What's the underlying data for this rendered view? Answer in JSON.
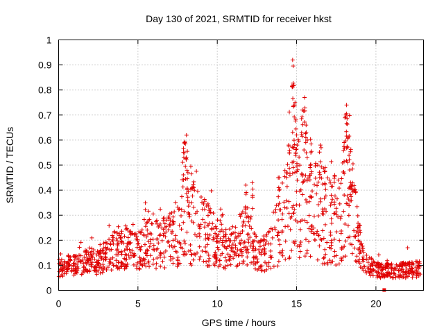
{
  "chart_data": {
    "type": "scatter",
    "title": "Day 130 of 2021, SRMTID for receiver hkst",
    "xlabel": "GPS time / hours",
    "ylabel": "SRMTID / TECUs",
    "xlim": [
      0,
      23
    ],
    "ylim": [
      0,
      1
    ],
    "xticks": [
      0,
      5,
      10,
      15,
      20
    ],
    "yticks": [
      0,
      0.1,
      0.2,
      0.3,
      0.4,
      0.5,
      0.6,
      0.7,
      0.8,
      0.9,
      1
    ],
    "xtick_labels": [
      "0",
      "5",
      "10",
      "15",
      "20"
    ],
    "ytick_labels": [
      "0",
      "0.1",
      "0.2",
      "0.3",
      "0.4",
      "0.5",
      "0.6",
      "0.7",
      "0.8",
      "0.9",
      "1"
    ],
    "grid": true,
    "marker": "+",
    "color": "#e00000",
    "series": [
      {
        "name": "SRMTID",
        "profile_x": [
          0,
          0.5,
          1,
          1.5,
          2,
          2.5,
          3,
          3.5,
          4,
          4.5,
          5,
          5.5,
          6,
          6.5,
          7,
          7.5,
          7.8,
          8.0,
          8.3,
          8.6,
          9,
          9.5,
          10,
          10.5,
          11,
          11.5,
          12,
          12.5,
          13,
          13.5,
          14,
          14.3,
          14.6,
          14.8,
          15.0,
          15.3,
          15.6,
          16,
          16.5,
          17,
          17.5,
          18,
          18.2,
          18.5,
          19,
          19.5,
          20,
          21,
          22,
          22.8
        ],
        "profile_y": [
          0.09,
          0.1,
          0.1,
          0.11,
          0.12,
          0.11,
          0.14,
          0.16,
          0.18,
          0.16,
          0.15,
          0.19,
          0.18,
          0.19,
          0.2,
          0.22,
          0.32,
          0.4,
          0.3,
          0.26,
          0.24,
          0.22,
          0.19,
          0.17,
          0.17,
          0.2,
          0.22,
          0.14,
          0.14,
          0.2,
          0.26,
          0.3,
          0.4,
          0.5,
          0.42,
          0.38,
          0.44,
          0.33,
          0.3,
          0.28,
          0.26,
          0.35,
          0.42,
          0.32,
          0.16,
          0.1,
          0.08,
          0.08,
          0.08,
          0.09
        ],
        "spikes": [
          {
            "x": 7.95,
            "y": 0.59
          },
          {
            "x": 8.05,
            "y": 0.53
          },
          {
            "x": 8.15,
            "y": 0.47
          },
          {
            "x": 11.8,
            "y": 0.42
          },
          {
            "x": 12.2,
            "y": 0.43
          },
          {
            "x": 13.9,
            "y": 0.45
          },
          {
            "x": 14.5,
            "y": 0.58
          },
          {
            "x": 14.75,
            "y": 0.92
          },
          {
            "x": 14.8,
            "y": 0.82
          },
          {
            "x": 14.9,
            "y": 0.75
          },
          {
            "x": 15.0,
            "y": 0.62
          },
          {
            "x": 15.35,
            "y": 0.72
          },
          {
            "x": 15.5,
            "y": 0.77
          },
          {
            "x": 15.6,
            "y": 0.66
          },
          {
            "x": 15.9,
            "y": 0.55
          },
          {
            "x": 16.5,
            "y": 0.58
          },
          {
            "x": 16.8,
            "y": 0.49
          },
          {
            "x": 17.4,
            "y": 0.46
          },
          {
            "x": 18.0,
            "y": 0.59
          },
          {
            "x": 18.1,
            "y": 0.7
          },
          {
            "x": 18.15,
            "y": 0.74
          },
          {
            "x": 18.25,
            "y": 0.61
          },
          {
            "x": 18.4,
            "y": 0.43
          },
          {
            "x": 19.0,
            "y": 0.26
          },
          {
            "x": 22.0,
            "y": 0.17
          }
        ],
        "n_points": 1400
      }
    ]
  }
}
